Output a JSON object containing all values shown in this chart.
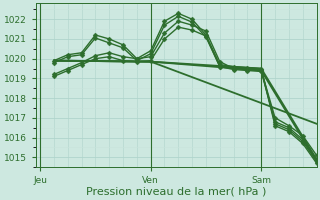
{
  "background_color": "#cde8e0",
  "grid_color_major": "#b0d4cc",
  "grid_color_minor": "#c8e4dc",
  "line_dark": "#2d6e2d",
  "line_medium": "#3a8a3a",
  "ylim": [
    1014.5,
    1022.8
  ],
  "xlim": [
    -1,
    60
  ],
  "yticks": [
    1015,
    1016,
    1017,
    1018,
    1019,
    1020,
    1021,
    1022
  ],
  "xlabel": "Pression niveau de la mer( hPa )",
  "day_labels": [
    "Jeu",
    "Ven",
    "Sam"
  ],
  "day_positions": [
    0,
    24,
    48
  ],
  "tick_fontsize": 6.5,
  "xlabel_fontsize": 8,
  "series_with_markers": [
    {
      "x": [
        3,
        6,
        9,
        12,
        15,
        18,
        21,
        24,
        27,
        30,
        33,
        36,
        39,
        42,
        45,
        48,
        51,
        54,
        57,
        60
      ],
      "y": [
        1019.1,
        1019.4,
        1019.7,
        1020.0,
        1020.1,
        1019.9,
        1019.85,
        1019.9,
        1021.0,
        1021.6,
        1021.45,
        1021.15,
        1019.6,
        1019.45,
        1019.4,
        1019.35,
        1016.8,
        1016.5,
        1015.9,
        1014.9
      ],
      "color": "#2d6e2d",
      "lw": 1.0
    },
    {
      "x": [
        3,
        6,
        9,
        12,
        15,
        18,
        21,
        24,
        27,
        30,
        33,
        36,
        39,
        42,
        45,
        48,
        51,
        54,
        57,
        60
      ],
      "y": [
        1019.2,
        1019.5,
        1019.8,
        1020.15,
        1020.3,
        1020.1,
        1020.0,
        1020.1,
        1021.3,
        1021.9,
        1021.7,
        1021.4,
        1019.85,
        1019.5,
        1019.45,
        1019.4,
        1017.0,
        1016.6,
        1016.1,
        1015.1
      ],
      "color": "#2d6e2d",
      "lw": 1.0
    },
    {
      "x": [
        3,
        6,
        9,
        12,
        15,
        18,
        21,
        24,
        27,
        30,
        33,
        36,
        39,
        42,
        45,
        48,
        51,
        54,
        57,
        60
      ],
      "y": [
        1019.8,
        1020.1,
        1020.2,
        1021.05,
        1020.8,
        1020.55,
        1019.9,
        1020.25,
        1021.7,
        1022.15,
        1021.85,
        1021.1,
        1019.6,
        1019.55,
        1019.5,
        1019.45,
        1016.6,
        1016.3,
        1015.7,
        1014.7
      ],
      "color": "#2d6e2d",
      "lw": 1.0
    },
    {
      "x": [
        3,
        6,
        9,
        12,
        15,
        18,
        21,
        24,
        27,
        30,
        33,
        36,
        39,
        42,
        45,
        48,
        51,
        54,
        57,
        60
      ],
      "y": [
        1019.9,
        1020.2,
        1020.3,
        1021.2,
        1021.0,
        1020.7,
        1020.0,
        1020.4,
        1021.9,
        1022.3,
        1022.0,
        1021.2,
        1019.7,
        1019.6,
        1019.55,
        1019.5,
        1016.7,
        1016.4,
        1015.8,
        1014.8
      ],
      "color": "#2d6e2d",
      "lw": 1.0
    }
  ],
  "series_straight": [
    {
      "x": [
        3,
        24,
        48,
        60
      ],
      "y": [
        1019.9,
        1019.85,
        1019.4,
        1014.8
      ],
      "color": "#2d6e2d",
      "lw": 1.3
    },
    {
      "x": [
        3,
        24,
        48,
        60
      ],
      "y": [
        1019.9,
        1019.85,
        1019.5,
        1014.9
      ],
      "color": "#2d6e2d",
      "lw": 1.3
    },
    {
      "x": [
        3,
        24,
        60
      ],
      "y": [
        1019.9,
        1019.85,
        1016.7
      ],
      "color": "#2d6e2d",
      "lw": 1.3
    }
  ]
}
